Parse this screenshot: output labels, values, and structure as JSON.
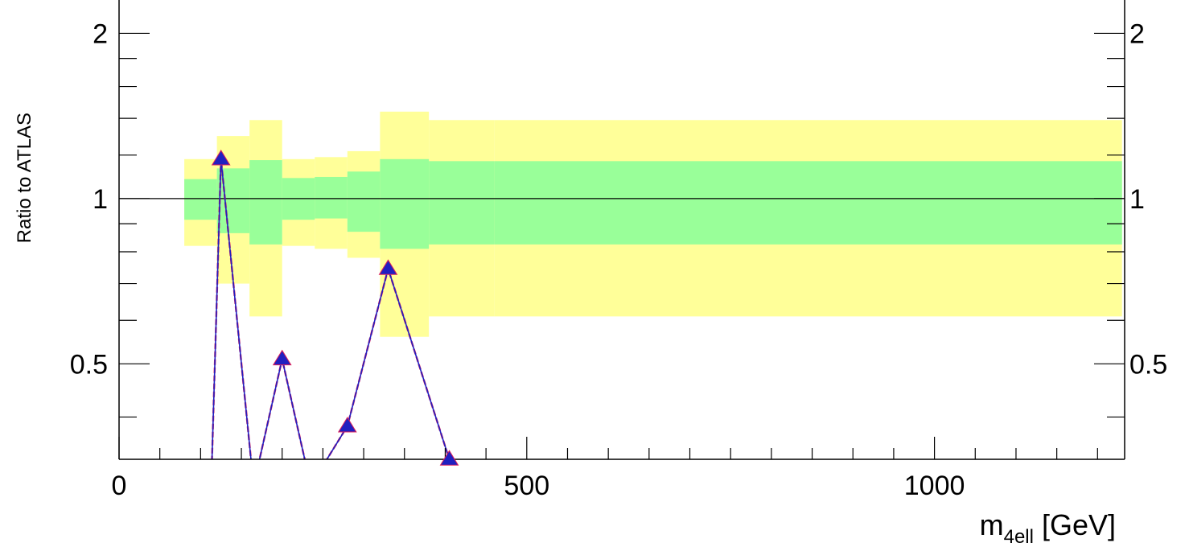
{
  "chart_data": {
    "type": "line",
    "xlabel": "m",
    "xlabel_sub": "4ell",
    "xlabel_unit": " [GeV]",
    "ylabel": "Ratio to ATLAS",
    "y_scale": "log",
    "xlim": [
      0,
      1230
    ],
    "ylim": [
      0.335,
      2.3
    ],
    "x_tick_labels": [
      "0",
      "500",
      "1000"
    ],
    "x_ticks": [
      0,
      500,
      1000
    ],
    "y_tick_labels": [
      "0.5",
      "1",
      "2"
    ],
    "y_ticks": [
      0.5,
      1,
      2
    ],
    "reference_line": 1,
    "band_edges": [
      80,
      120,
      160,
      200,
      240,
      280,
      320,
      380,
      460,
      1230
    ],
    "inner_band": {
      "color": "#99ff99",
      "lower": [
        0.915,
        0.865,
        0.825,
        0.915,
        0.92,
        0.87,
        0.81,
        0.825,
        0.825
      ],
      "upper": [
        1.085,
        1.135,
        1.175,
        1.09,
        1.095,
        1.12,
        1.18,
        1.17,
        1.17
      ]
    },
    "outer_band": {
      "color": "#ffff99",
      "lower": [
        0.82,
        0.7,
        0.61,
        0.82,
        0.81,
        0.78,
        0.56,
        0.61,
        0.61
      ],
      "upper": [
        1.18,
        1.3,
        1.39,
        1.18,
        1.19,
        1.22,
        1.44,
        1.39,
        1.39
      ]
    },
    "series": [
      {
        "color": "#2020c0",
        "marker": "triangle",
        "x": [
          113,
          125,
          165,
          200,
          235,
          280,
          330,
          405
        ],
        "y": [
          0.3,
          1.18,
          0.3,
          0.51,
          0.3,
          0.385,
          0.745,
          0.335
        ]
      }
    ],
    "marker_indices": [
      1,
      3,
      5,
      6,
      7
    ],
    "secondary_line_color": "#e0205a"
  }
}
